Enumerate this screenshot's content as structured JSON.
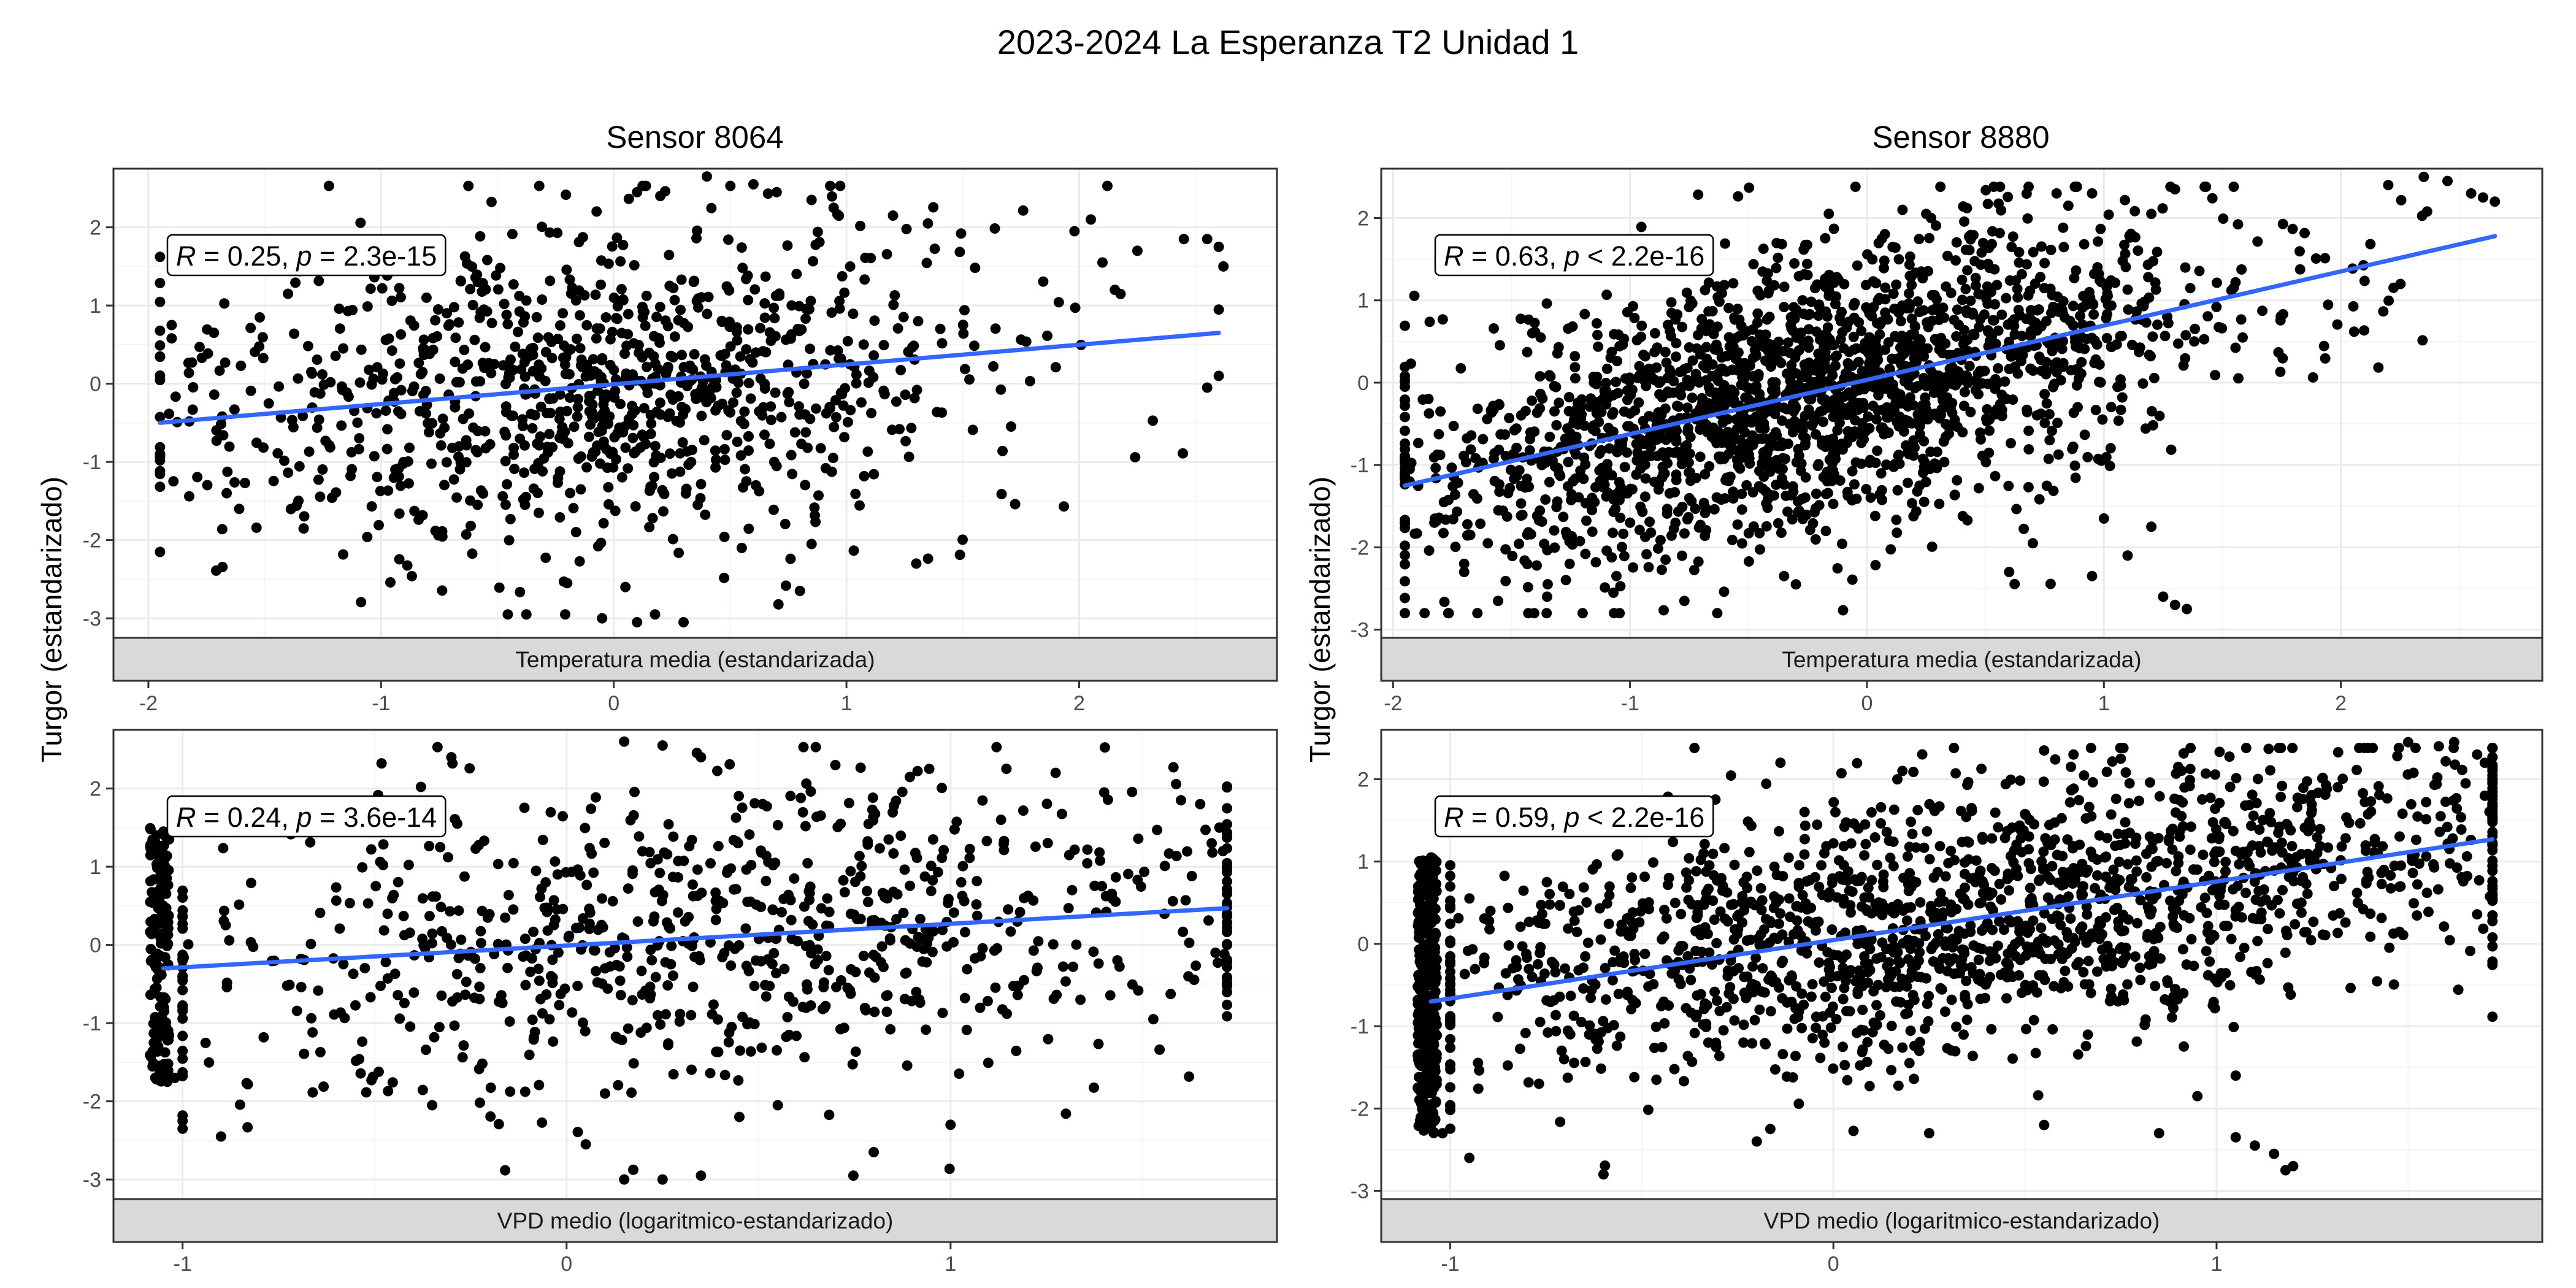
{
  "title": "2023-2024 La Esperanza T2 Unidad 1",
  "ylabel": "Turgor (estandarizado)",
  "colors": {
    "point": "#000000",
    "fit": "#3366FF",
    "strip": "#D9D9D9",
    "grid_major": "#EBEBEB",
    "grid_minor": "#F5F5F5",
    "border": "#333333"
  },
  "columns": [
    "Sensor 8064",
    "Sensor 8880"
  ],
  "rows": [
    "Temperatura media (estandarizada)",
    "VPD medio (logaritmico-estandarizado)"
  ],
  "chart_data": [
    {
      "type": "scatter",
      "column": "Sensor 8064",
      "strip": "Temperatura media (estandarizada)",
      "xlim": [
        -2.15,
        2.85
      ],
      "ylim": [
        -3.25,
        2.75
      ],
      "x_ticks": [
        -2,
        -1,
        0,
        1,
        2
      ],
      "y_ticks": [
        -3,
        -2,
        -1,
        0,
        1,
        2
      ],
      "x_tick_labels": [
        "-2",
        "-1",
        "0",
        "1",
        "2"
      ],
      "y_tick_labels": [
        "-3",
        "-2",
        "-1",
        "0",
        "1",
        "2"
      ],
      "annotation": {
        "r_label": "R",
        "r_text": " = 0.25, ",
        "p_label": "p",
        "p_text": " = 2.3e-15"
      },
      "fit": {
        "x": [
          -1.95,
          2.6
        ],
        "y": [
          -0.5,
          0.65
        ]
      },
      "n_points": 1000,
      "x_range": [
        -1.95,
        2.6
      ],
      "x_center": -0.1,
      "x_spread": 0.85,
      "y_sd": 1.0,
      "bins": [],
      "points": [
        [
          -1.9,
          0.75
        ],
        [
          -1.9,
          0.58
        ],
        [
          -1.78,
          0.47
        ],
        [
          -1.77,
          0.33
        ],
        [
          -1.67,
          0.27
        ],
        [
          -1.63,
          -0.33
        ],
        [
          -1.4,
          1.15
        ],
        [
          -1.3,
          0.15
        ],
        [
          -0.2,
          -2.55
        ],
        [
          0.05,
          -2.6
        ],
        [
          0.1,
          -3.05
        ],
        [
          0.3,
          -3.05
        ],
        [
          -0.05,
          -3.0
        ],
        [
          0.8,
          -2.65
        ],
        [
          1.3,
          -2.3
        ],
        [
          0.85,
          -2.05
        ],
        [
          0.55,
          -2.1
        ],
        [
          0.1,
          2.45
        ],
        [
          0.2,
          2.4
        ],
        [
          0.4,
          2.65
        ],
        [
          0.6,
          2.55
        ],
        [
          0.7,
          2.45
        ],
        [
          0.85,
          2.35
        ],
        [
          1.2,
          2.15
        ],
        [
          1.35,
          2.05
        ],
        [
          1.98,
          1.95
        ],
        [
          2.25,
          1.7
        ],
        [
          2.45,
          1.85
        ],
        [
          2.55,
          1.85
        ],
        [
          2.6,
          1.75
        ],
        [
          2.62,
          1.5
        ],
        [
          2.1,
          1.55
        ],
        [
          2.6,
          0.1
        ],
        [
          2.55,
          -0.05
        ]
      ]
    },
    {
      "type": "scatter",
      "column": "Sensor 8880",
      "strip": "Temperatura media (estandarizada)",
      "xlim": [
        -2.05,
        2.85
      ],
      "ylim": [
        -3.1,
        2.6
      ],
      "x_ticks": [
        -2,
        -1,
        0,
        1,
        2
      ],
      "y_ticks": [
        -3,
        -2,
        -1,
        0,
        1,
        2
      ],
      "x_tick_labels": [
        "-2",
        "-1",
        "0",
        "1",
        "2"
      ],
      "y_tick_labels": [
        "-3",
        "-2",
        "-1",
        "0",
        "1",
        "2"
      ],
      "annotation": {
        "r_label": "R",
        "r_text": " = 0.63, ",
        "p_label": "p",
        "p_text": " < 2.2e-16"
      },
      "fit": {
        "x": [
          -1.95,
          2.65
        ],
        "y": [
          -1.25,
          1.78
        ]
      },
      "n_points": 2000,
      "x_range": [
        -1.95,
        2.65
      ],
      "x_center": -0.2,
      "x_spread": 0.85,
      "y_sd": 0.85,
      "bins": [],
      "points": [
        [
          -1.93,
          -1.05
        ],
        [
          -1.93,
          -1.2
        ],
        [
          -1.8,
          -0.35
        ],
        [
          -1.7,
          -2.2
        ],
        [
          -1.7,
          -2.3
        ],
        [
          -1.6,
          -1.95
        ],
        [
          -1.35,
          -2.6
        ],
        [
          -1.2,
          -2.8
        ],
        [
          -0.85,
          -2.15
        ],
        [
          -0.35,
          -2.35
        ],
        [
          -0.3,
          -2.45
        ],
        [
          0.6,
          -2.3
        ],
        [
          0.7,
          -1.95
        ],
        [
          0.95,
          -2.35
        ],
        [
          1.1,
          -2.1
        ],
        [
          1.0,
          -1.65
        ],
        [
          1.25,
          -2.6
        ],
        [
          1.3,
          -2.7
        ],
        [
          1.35,
          -2.75
        ],
        [
          1.2,
          -1.75
        ],
        [
          0.15,
          2.1
        ],
        [
          0.25,
          2.05
        ],
        [
          0.85,
          2.15
        ],
        [
          0.95,
          2.3
        ],
        [
          1.3,
          2.35
        ],
        [
          1.2,
          2.05
        ],
        [
          2.2,
          2.4
        ],
        [
          2.35,
          2.5
        ],
        [
          2.45,
          2.45
        ],
        [
          2.55,
          2.3
        ],
        [
          2.65,
          2.2
        ],
        [
          2.6,
          2.25
        ]
      ]
    },
    {
      "type": "scatter",
      "column": "Sensor 8064",
      "strip": "VPD medio (logaritmico-estandarizado)",
      "xlim": [
        -1.18,
        1.85
      ],
      "ylim": [
        -3.25,
        2.75
      ],
      "x_ticks": [
        -1,
        0,
        1
      ],
      "y_ticks": [
        -3,
        -2,
        -1,
        0,
        1,
        2
      ],
      "x_tick_labels": [
        "-1",
        "0",
        "1"
      ],
      "y_tick_labels": [
        "-3",
        "-2",
        "-1",
        "0",
        "1",
        "2"
      ],
      "annotation": {
        "r_label": "R",
        "r_text": " = 0.24, ",
        "p_label": "p",
        "p_text": " = 3.6e-14"
      },
      "fit": {
        "x": [
          -1.05,
          1.72
        ],
        "y": [
          -0.3,
          0.47
        ]
      },
      "n_points": 1000,
      "x_range": [
        -1.0,
        1.72
      ],
      "x_center": 0.4,
      "x_spread": 0.75,
      "y_sd": 1.0,
      "bins": [
        {
          "x": -1.06,
          "xw": 0.05,
          "y_range": [
            -1.75,
            1.5
          ],
          "n": 170
        }
      ],
      "points": [
        [
          -1.0,
          -2.25
        ],
        [
          -1.0,
          -2.35
        ],
        [
          -0.9,
          -2.45
        ],
        [
          -0.35,
          -2.05
        ],
        [
          0.05,
          -2.55
        ],
        [
          0.1,
          -1.9
        ],
        [
          0.15,
          -3.0
        ],
        [
          0.25,
          -3.0
        ],
        [
          0.35,
          -2.95
        ],
        [
          0.45,
          -2.2
        ],
        [
          0.55,
          -2.05
        ],
        [
          0.8,
          -2.65
        ],
        [
          1.0,
          -2.3
        ],
        [
          0.15,
          2.6
        ],
        [
          0.25,
          2.55
        ],
        [
          0.35,
          2.4
        ],
        [
          -0.3,
          2.4
        ],
        [
          1.4,
          1.95
        ],
        [
          1.6,
          1.85
        ],
        [
          1.65,
          1.8
        ],
        [
          1.7,
          1.5
        ],
        [
          1.68,
          1.3
        ],
        [
          1.72,
          0.0
        ],
        [
          1.69,
          -0.1
        ],
        [
          0.7,
          2.3
        ],
        [
          -1.02,
          1.48
        ],
        [
          -1.05,
          1.45
        ],
        [
          -1.02,
          -1.7
        ],
        [
          -1.04,
          -1.75
        ]
      ]
    },
    {
      "type": "scatter",
      "column": "Sensor 8880",
      "strip": "VPD medio (logaritmico-estandarizado)",
      "xlim": [
        -1.18,
        1.85
      ],
      "ylim": [
        -3.1,
        2.6
      ],
      "x_ticks": [
        -1,
        0,
        1
      ],
      "y_ticks": [
        -3,
        -2,
        -1,
        0,
        1,
        2
      ],
      "x_tick_labels": [
        "-1",
        "0",
        "1"
      ],
      "y_tick_labels": [
        "-3",
        "-2",
        "-1",
        "0",
        "1",
        "2"
      ],
      "annotation": {
        "r_label": "R",
        "r_text": " = 0.59, ",
        "p_label": "p",
        "p_text": " < 2.2e-16"
      },
      "fit": {
        "x": [
          -1.05,
          1.72
        ],
        "y": [
          -0.7,
          1.27
        ]
      },
      "n_points": 2000,
      "x_range": [
        -1.0,
        1.72
      ],
      "x_center": 0.4,
      "x_spread": 0.75,
      "y_sd": 0.8,
      "bins": [
        {
          "x": -1.06,
          "xw": 0.05,
          "y_range": [
            -2.3,
            1.05
          ],
          "n": 340
        }
      ],
      "points": [
        [
          -0.95,
          -2.6
        ],
        [
          -0.6,
          -2.8
        ],
        [
          -0.2,
          -2.4
        ],
        [
          0.25,
          -2.3
        ],
        [
          0.55,
          -2.2
        ],
        [
          0.85,
          -2.3
        ],
        [
          0.95,
          -1.85
        ],
        [
          1.05,
          -2.35
        ],
        [
          1.1,
          -2.45
        ],
        [
          1.15,
          -2.55
        ],
        [
          1.18,
          -2.75
        ],
        [
          1.2,
          -2.7
        ],
        [
          1.05,
          -1.6
        ],
        [
          0.55,
          2.35
        ],
        [
          0.75,
          2.25
        ],
        [
          0.9,
          2.15
        ],
        [
          1.5,
          2.45
        ],
        [
          1.58,
          2.4
        ],
        [
          1.62,
          2.45
        ],
        [
          1.68,
          2.3
        ],
        [
          1.7,
          2.2
        ],
        [
          1.72,
          2.1
        ],
        [
          1.65,
          1.95
        ],
        [
          1.7,
          1.8
        ],
        [
          -1.05,
          1.05
        ],
        [
          -1.02,
          -2.3
        ]
      ]
    }
  ]
}
